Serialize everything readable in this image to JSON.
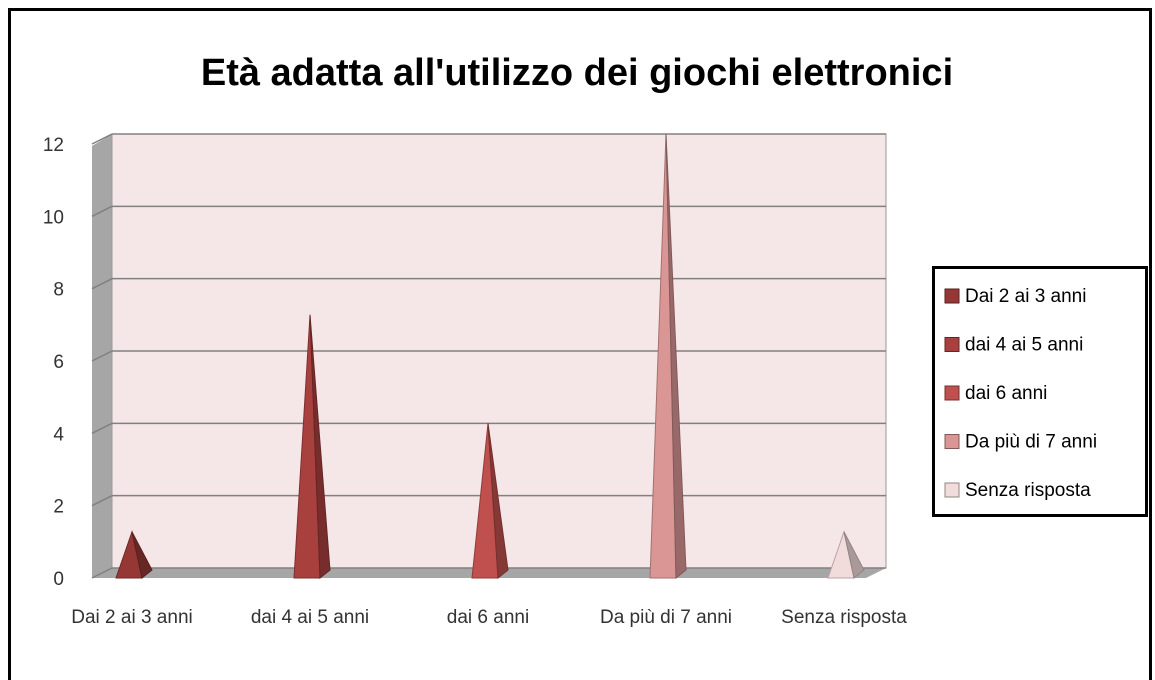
{
  "chart_data": {
    "type": "pyramid3d",
    "title": "Età  adatta all'utilizzo dei giochi elettronici",
    "categories": [
      "Dai 2 ai 3 anni",
      "dai 4 ai 5 anni",
      "dai 6 anni",
      "Da più di 7 anni",
      "Senza risposta"
    ],
    "series": [
      {
        "name": "Dai 2 ai 3 anni",
        "color": "#953735",
        "values": [
          1,
          null,
          null,
          null,
          null
        ]
      },
      {
        "name": "dai 4 ai 5 anni",
        "color": "#a8403e",
        "values": [
          null,
          7,
          null,
          null,
          null
        ]
      },
      {
        "name": "dai 6 anni",
        "color": "#c0504d",
        "values": [
          null,
          null,
          4,
          null,
          null
        ]
      },
      {
        "name": "Da più di 7 anni",
        "color": "#d99694",
        "values": [
          null,
          null,
          null,
          12,
          null
        ]
      },
      {
        "name": "Senza risposta",
        "color": "#f2dcdb",
        "values": [
          null,
          null,
          null,
          null,
          1
        ]
      }
    ],
    "ylim": [
      0,
      12
    ],
    "yticks": [
      0,
      2,
      4,
      6,
      8,
      10,
      12
    ],
    "grid": true,
    "legend": "right"
  }
}
